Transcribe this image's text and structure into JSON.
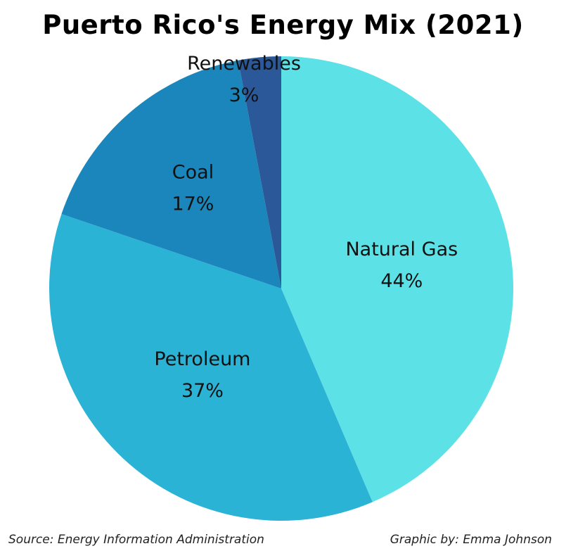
{
  "chart_data": {
    "type": "pie",
    "title": "Puerto Rico's Energy Mix (2021)",
    "slices": [
      {
        "label": "Natural Gas",
        "value": 44,
        "display": "44%",
        "color": "#5ce1e6"
      },
      {
        "label": "Petroleum",
        "value": 37,
        "display": "37%",
        "color": "#2bb3d6"
      },
      {
        "label": "Coal",
        "value": 17,
        "display": "17%",
        "color": "#1a86bb"
      },
      {
        "label": "Renewables",
        "value": 3,
        "display": "3%",
        "color": "#2a5898"
      }
    ],
    "start": "top",
    "direction": "clockwise"
  },
  "footer": {
    "source": "Source: Energy Information Administration",
    "credit": "Graphic by: Emma Johnson"
  }
}
